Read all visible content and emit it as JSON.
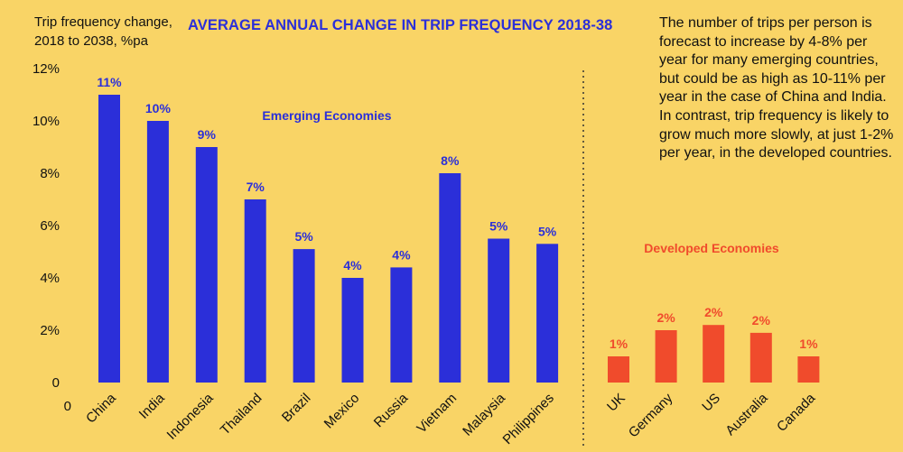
{
  "chart_data": {
    "type": "bar",
    "title": "AVERAGE ANNUAL CHANGE IN TRIP FREQUENCY 2018-38",
    "ylabel": "Trip frequency change, 2018 to 2038, %pa",
    "xlabel": "",
    "ylim": [
      0,
      12
    ],
    "yticks": [
      "0",
      "2%",
      "4%",
      "6%",
      "8%",
      "10%",
      "12%"
    ],
    "ytick_values": [
      0,
      2,
      4,
      6,
      8,
      10,
      12
    ],
    "grid": false,
    "note": "The number of trips per person is forecast to increase by 4-8% per year for many emerging countries, but could be as high as 10-11% per year in the case of China and India. In contrast, trip frequency is likely to grow much more slowly, at just 1-2% per year, in the developed countries.",
    "groups": [
      {
        "name": "Emerging Economies",
        "color": "#2B2FD9",
        "categories": [
          "China",
          "India",
          "Indonesia",
          "Thailand",
          "Brazil",
          "Mexico",
          "Russia",
          "Vietnam",
          "Malaysia",
          "Philippines"
        ],
        "values": [
          11,
          10,
          9,
          7,
          5.1,
          4,
          4.4,
          8,
          5.5,
          5.3
        ],
        "labels": [
          "11%",
          "10%",
          "9%",
          "7%",
          "5%",
          "4%",
          "4%",
          "8%",
          "5%",
          "5%"
        ]
      },
      {
        "name": "Developed Economies",
        "color": "#F04B2C",
        "categories": [
          "UK",
          "Germany",
          "US",
          "Australia",
          "Canada"
        ],
        "values": [
          1,
          2,
          2.2,
          1.9,
          1
        ],
        "labels": [
          "1%",
          "2%",
          "2%",
          "2%",
          "1%"
        ]
      }
    ]
  }
}
